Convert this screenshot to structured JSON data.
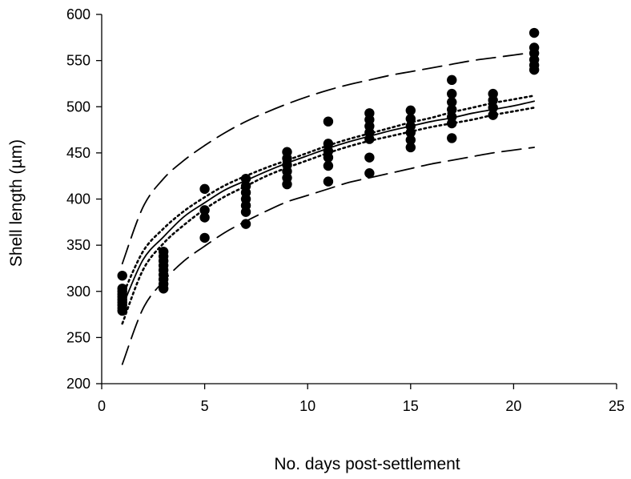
{
  "chart_data": {
    "type": "scatter",
    "title": "",
    "xlabel": "No. days post-settlement",
    "ylabel": "Shell length (µm)",
    "xlim": [
      0,
      25
    ],
    "ylim": [
      200,
      600
    ],
    "xticks": [
      "0",
      "5",
      "10",
      "15",
      "20",
      "25"
    ],
    "yticks": [
      "200",
      "250",
      "300",
      "350",
      "400",
      "450",
      "500",
      "550",
      "600"
    ],
    "grid": false,
    "legend": "none",
    "series": [
      {
        "type": "scatter",
        "color": "#000000",
        "points": [
          [
            1,
            317
          ],
          [
            1,
            303
          ],
          [
            1,
            300
          ],
          [
            1,
            297
          ],
          [
            1,
            294
          ],
          [
            1,
            291
          ],
          [
            1,
            288
          ],
          [
            1,
            285
          ],
          [
            1,
            282
          ],
          [
            1,
            279
          ],
          [
            3,
            343
          ],
          [
            3,
            338
          ],
          [
            3,
            333
          ],
          [
            3,
            328
          ],
          [
            3,
            323
          ],
          [
            3,
            318
          ],
          [
            3,
            313
          ],
          [
            3,
            308
          ],
          [
            3,
            303
          ],
          [
            5,
            411
          ],
          [
            5,
            388
          ],
          [
            5,
            380
          ],
          [
            5,
            358
          ],
          [
            7,
            422
          ],
          [
            7,
            414
          ],
          [
            7,
            407
          ],
          [
            7,
            400
          ],
          [
            7,
            393
          ],
          [
            7,
            386
          ],
          [
            7,
            373
          ],
          [
            9,
            451
          ],
          [
            9,
            444
          ],
          [
            9,
            437
          ],
          [
            9,
            430
          ],
          [
            9,
            423
          ],
          [
            9,
            416
          ],
          [
            11,
            484
          ],
          [
            11,
            460
          ],
          [
            11,
            452
          ],
          [
            11,
            445
          ],
          [
            11,
            436
          ],
          [
            11,
            419
          ],
          [
            13,
            493
          ],
          [
            13,
            486
          ],
          [
            13,
            479
          ],
          [
            13,
            472
          ],
          [
            13,
            465
          ],
          [
            13,
            445
          ],
          [
            13,
            428
          ],
          [
            15,
            496
          ],
          [
            15,
            487
          ],
          [
            15,
            479
          ],
          [
            15,
            472
          ],
          [
            15,
            464
          ],
          [
            15,
            456
          ],
          [
            17,
            529
          ],
          [
            17,
            514
          ],
          [
            17,
            505
          ],
          [
            17,
            497
          ],
          [
            17,
            489
          ],
          [
            17,
            482
          ],
          [
            17,
            466
          ],
          [
            19,
            514
          ],
          [
            19,
            507
          ],
          [
            19,
            499
          ],
          [
            19,
            491
          ],
          [
            21,
            580
          ],
          [
            21,
            564
          ],
          [
            21,
            558
          ],
          [
            21,
            551
          ],
          [
            21,
            545
          ],
          [
            21,
            540
          ]
        ]
      },
      {
        "type": "line",
        "style": "solid",
        "color": "#000000",
        "x": [
          1,
          2,
          3,
          4,
          5,
          6,
          7,
          8,
          9,
          10,
          11,
          12,
          13,
          14,
          15,
          16,
          17,
          18,
          19,
          20,
          21
        ],
        "values": [
          283,
          334,
          359,
          381,
          396,
          410,
          420,
          430,
          439,
          447,
          455,
          462,
          468,
          474,
          479,
          484,
          488,
          493,
          497,
          501,
          506
        ]
      },
      {
        "type": "line",
        "style": "dotted",
        "color": "#000000",
        "x": [
          1,
          2,
          3,
          4,
          5,
          6,
          7,
          8,
          9,
          10,
          11,
          12,
          13,
          14,
          15,
          16,
          17,
          18,
          19,
          20,
          21
        ],
        "values": [
          295,
          343,
          368,
          387,
          402,
          415,
          425,
          434,
          442,
          450,
          458,
          465,
          471,
          477,
          483,
          488,
          494,
          499,
          504,
          508,
          512
        ]
      },
      {
        "type": "line",
        "style": "dotted",
        "color": "#000000",
        "x": [
          1,
          2,
          3,
          4,
          5,
          6,
          7,
          8,
          9,
          10,
          11,
          12,
          13,
          14,
          15,
          16,
          17,
          18,
          19,
          20,
          21
        ],
        "values": [
          265,
          323,
          352,
          372,
          389,
          403,
          414,
          425,
          434,
          442,
          450,
          457,
          463,
          468,
          473,
          478,
          482,
          486,
          491,
          495,
          499
        ]
      },
      {
        "type": "line",
        "style": "dashed",
        "color": "#000000",
        "x": [
          1,
          2,
          3,
          4,
          5,
          6,
          7,
          8,
          9,
          10,
          11,
          12,
          13,
          14,
          15,
          16,
          17,
          18,
          19,
          20,
          21
        ],
        "values": [
          330,
          391,
          422,
          442,
          458,
          472,
          484,
          494,
          503,
          511,
          518,
          524,
          529,
          534,
          538,
          542,
          546,
          550,
          553,
          556,
          559
        ]
      },
      {
        "type": "line",
        "style": "dashed",
        "color": "#000000",
        "x": [
          1,
          2,
          3,
          4,
          5,
          6,
          7,
          8,
          9,
          10,
          11,
          12,
          13,
          14,
          15,
          16,
          17,
          18,
          19,
          20,
          21
        ],
        "values": [
          221,
          281,
          311,
          333,
          349,
          364,
          376,
          387,
          397,
          404,
          411,
          418,
          423,
          428,
          433,
          438,
          442,
          446,
          450,
          453,
          456
        ]
      }
    ]
  }
}
